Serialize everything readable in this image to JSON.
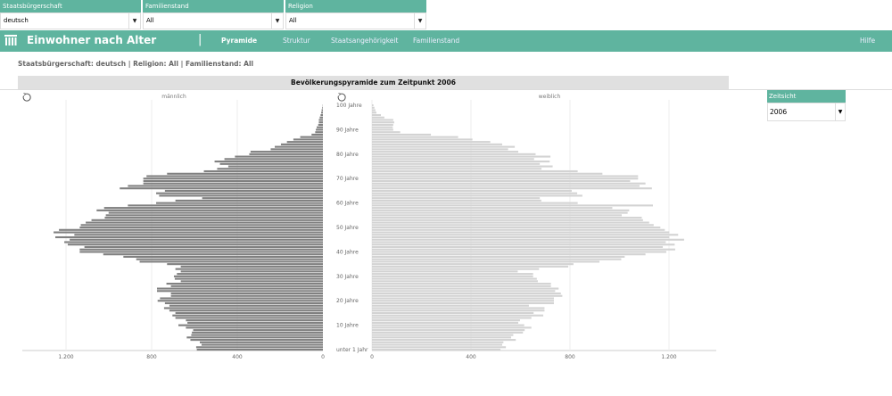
{
  "filters": [
    {
      "label": "Staatsbürgerschaft",
      "value": "deutsch"
    },
    {
      "label": "Familienstand",
      "value": "All"
    },
    {
      "label": "Religion",
      "value": "All"
    }
  ],
  "navbar": {
    "logo_icon": "building-columns-icon",
    "title": "Einwohner nach Alter",
    "separator": "|",
    "tabs": [
      {
        "label": "Pyramide",
        "active": true
      },
      {
        "label": "Struktur"
      },
      {
        "label": "Staatsangehörigkeit"
      },
      {
        "label": "Familienstand"
      }
    ],
    "help": "Hilfe"
  },
  "subtitle": "Staatsbürgerschaft: deutsch | Religion: All | Familienstand: All",
  "zeitsicht": {
    "label": "Zeitsicht",
    "value": "2006"
  },
  "colors": {
    "accent": "#5fb49f",
    "male": "#808080",
    "female": "#d3d3d3"
  },
  "chart_data": {
    "type": "bar",
    "orientation": "horizontal-pyramid",
    "title": "Bevölkerungspyramide zum Zeitpunkt 2006",
    "age_labels": [
      {
        "age": 100,
        "label": "100 Jahre"
      },
      {
        "age": 90,
        "label": "90 Jahre"
      },
      {
        "age": 80,
        "label": "80 Jahre"
      },
      {
        "age": 70,
        "label": "70 Jahre"
      },
      {
        "age": 60,
        "label": "60 Jahre"
      },
      {
        "age": 50,
        "label": "50 Jahre"
      },
      {
        "age": 40,
        "label": "40 Jahre"
      },
      {
        "age": 30,
        "label": "30 Jahre"
      },
      {
        "age": 20,
        "label": "20 Jahre"
      },
      {
        "age": 10,
        "label": "10 Jahre"
      },
      {
        "age": 0,
        "label": "unter 1 Jahr"
      }
    ],
    "grid": true,
    "series": [
      {
        "name": "männlich",
        "xlim": [
          0,
          1200
        ],
        "ticks": [
          {
            "v": 1200,
            "label": "1.200"
          },
          {
            "v": 800,
            "label": "800"
          },
          {
            "v": 400,
            "label": "400"
          },
          {
            "v": 0,
            "label": "0"
          }
        ],
        "values": [
          589,
          592,
          567,
          575,
          619,
          636,
          615,
          612,
          606,
          640,
          675,
          633,
          640,
          689,
          703,
          689,
          717,
          742,
          717,
          738,
          772,
          761,
          710,
          710,
          775,
          775,
          710,
          731,
          664,
          692,
          696,
          682,
          664,
          689,
          664,
          728,
          856,
          872,
          932,
          1026,
          1136,
          1136,
          1114,
          1192,
          1208,
          1183,
          1250,
          1161,
          1258,
          1233,
          1136,
          1131,
          1108,
          1081,
          1019,
          1014,
          1001,
          1057,
          1022,
          911,
          779,
          689,
          564,
          765,
          779,
          738,
          949,
          911,
          839,
          839,
          839,
          824,
          728,
          556,
          494,
          442,
          481,
          506,
          460,
          411,
          344,
          338,
          244,
          225,
          196,
          168,
          138,
          106,
          53,
          36,
          33,
          29,
          22,
          19,
          19,
          15,
          11,
          8,
          6,
          3,
          1
        ]
      },
      {
        "name": "weiblich",
        "xlim": [
          0,
          1200
        ],
        "ticks": [
          {
            "v": 0,
            "label": "0"
          },
          {
            "v": 400,
            "label": "400"
          },
          {
            "v": 800,
            "label": "800"
          },
          {
            "v": 1200,
            "label": "1.200"
          }
        ],
        "values": [
          519,
          541,
          526,
          531,
          581,
          562,
          571,
          610,
          617,
          644,
          615,
          591,
          598,
          644,
          692,
          653,
          697,
          697,
          634,
          735,
          735,
          735,
          769,
          763,
          740,
          754,
          723,
          723,
          670,
          666,
          651,
          651,
          589,
          675,
          793,
          814,
          919,
          1007,
          1021,
          1105,
          1189,
          1225,
          1175,
          1223,
          1187,
          1261,
          1201,
          1237,
          1201,
          1183,
          1165,
          1138,
          1120,
          1095,
          1090,
          1009,
          1033,
          1039,
          971,
          1135,
          831,
          684,
          678,
          850,
          829,
          807,
          1131,
          1081,
          1105,
          1043,
          1075,
          1075,
          931,
          831,
          685,
          730,
          678,
          718,
          655,
          721,
          661,
          591,
          550,
          577,
          526,
          478,
          406,
          348,
          238,
          114,
          86,
          84,
          86,
          90,
          86,
          50,
          36,
          18,
          14,
          10,
          6
        ]
      }
    ]
  }
}
